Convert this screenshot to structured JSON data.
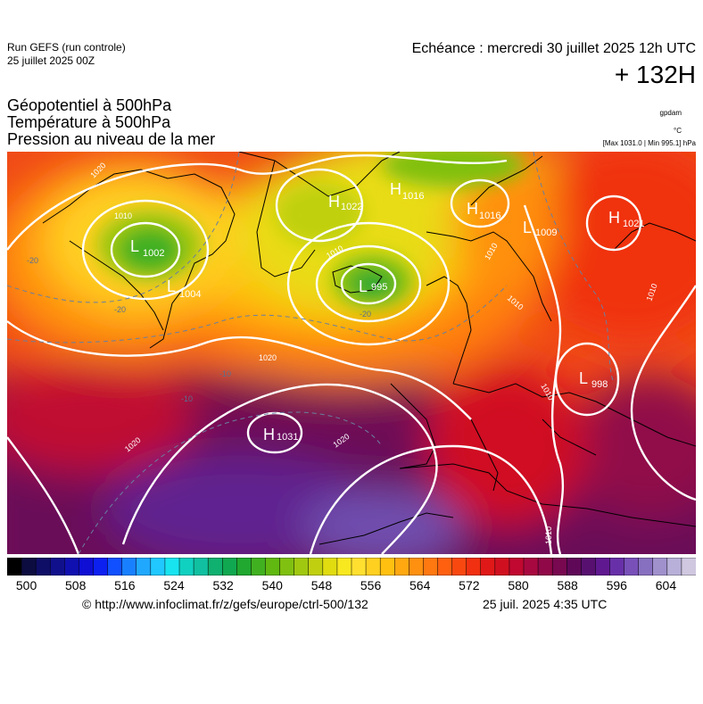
{
  "header": {
    "run_title": "Run GEFS (run controle)",
    "run_date": "25 juillet 2025 00Z",
    "echeance": "Echéance : mercredi 30 juillet 2025 12h UTC",
    "horizon": "+ 132H"
  },
  "title_lines": [
    "Géopotentiel à 500hPa",
    "Température à 500hPa",
    "Pression au niveau de la mer"
  ],
  "units": {
    "gpdam": "gpdam",
    "celsius": "°C",
    "maxmin": "[Max 1031.0 | Min 995.1] hPa"
  },
  "pressure_centers": [
    {
      "type": "H",
      "value": "1031"
    },
    {
      "type": "H",
      "value": "1022"
    },
    {
      "type": "H",
      "value": "1016"
    },
    {
      "type": "H",
      "value": "1016"
    },
    {
      "type": "H",
      "value": "1021"
    },
    {
      "type": "L",
      "value": "1002"
    },
    {
      "type": "L",
      "value": "1004"
    },
    {
      "type": "L",
      "value": "995"
    },
    {
      "type": "L",
      "value": "1009"
    },
    {
      "type": "L",
      "value": "998"
    }
  ],
  "isobar_labels": [
    "1020",
    "1020",
    "1020",
    "1020",
    "1010",
    "1010",
    "1010",
    "1010",
    "1010",
    "1010",
    "1010"
  ],
  "temperature_labels": [
    "-20",
    "-20",
    "-20",
    "-10",
    "-10"
  ],
  "colorbar": {
    "labels": [
      "500",
      "508",
      "516",
      "524",
      "532",
      "540",
      "548",
      "556",
      "564",
      "572",
      "580",
      "588",
      "596",
      "604"
    ],
    "colors": [
      "#000000",
      "#0c0c40",
      "#0e0e66",
      "#10108c",
      "#1010b0",
      "#0e0ed4",
      "#0c20f0",
      "#1050ff",
      "#1880ff",
      "#20a8ff",
      "#20c8ff",
      "#18e4f0",
      "#10d0c0",
      "#10c0a0",
      "#10b070",
      "#10a850",
      "#20a830",
      "#40b020",
      "#60b810",
      "#80c010",
      "#a0c810",
      "#c0d010",
      "#e0dc10",
      "#f8e820",
      "#ffe030",
      "#ffd020",
      "#ffc010",
      "#ffa810",
      "#ff9010",
      "#ff7810",
      "#ff6010",
      "#f84810",
      "#f03010",
      "#e01818",
      "#d01020",
      "#c00830",
      "#a80840",
      "#900848",
      "#780850",
      "#600858",
      "#581070",
      "#601890",
      "#6830a8",
      "#7850b8",
      "#8870c0",
      "#a090cc",
      "#b8b0d8",
      "#d0c8e0"
    ]
  },
  "footer": {
    "copyright": "© http://www.infoclimat.fr/z/gefs/europe/ctrl-500/132",
    "run_time": "25 juil. 2025  4:35 UTC"
  }
}
